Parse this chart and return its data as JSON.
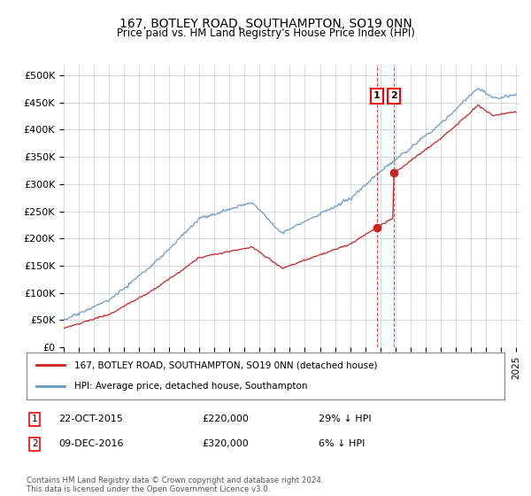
{
  "title": "167, BOTLEY ROAD, SOUTHAMPTON, SO19 0NN",
  "subtitle": "Price paid vs. HM Land Registry's House Price Index (HPI)",
  "ylabel_ticks": [
    "£0",
    "£50K",
    "£100K",
    "£150K",
    "£200K",
    "£250K",
    "£300K",
    "£350K",
    "£400K",
    "£450K",
    "£500K"
  ],
  "ytick_vals": [
    0,
    50000,
    100000,
    150000,
    200000,
    250000,
    300000,
    350000,
    400000,
    450000,
    500000
  ],
  "ylim": [
    0,
    520000
  ],
  "hpi_color": "#6699cc",
  "price_color": "#cc2222",
  "t1_year": 2015.79,
  "t2_year": 2016.92,
  "t1_price": 220000,
  "t2_price": 320000,
  "legend1": "167, BOTLEY ROAD, SOUTHAMPTON, SO19 0NN (detached house)",
  "legend2": "HPI: Average price, detached house, Southampton",
  "footer": "Contains HM Land Registry data © Crown copyright and database right 2024.\nThis data is licensed under the Open Government Licence v3.0.",
  "background_color": "#ffffff",
  "grid_color": "#cccccc",
  "transaction1_date": "22-OCT-2015",
  "transaction1_pct": "29% ↓ HPI",
  "transaction2_date": "09-DEC-2016",
  "transaction2_pct": "6% ↓ HPI"
}
